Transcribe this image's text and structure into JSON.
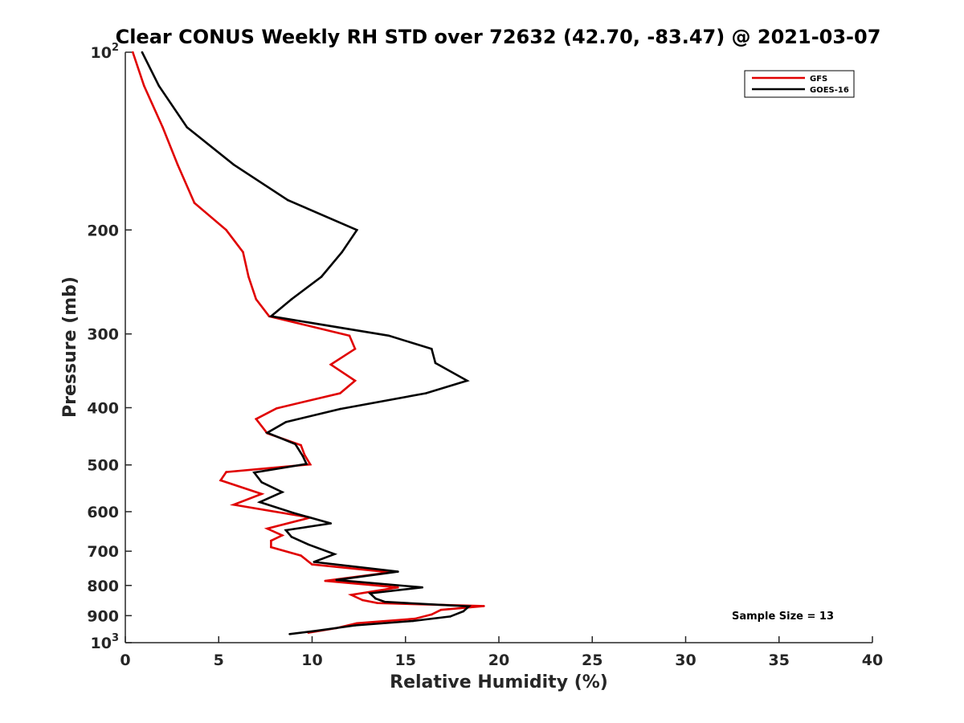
{
  "chart_data": {
    "type": "line",
    "title": "Clear CONUS Weekly RH STD over 72632 (42.70, -83.47) @ 2021-03-07",
    "xlabel": "Relative Humidity (%)",
    "ylabel": "Pressure (mb)",
    "xlim": [
      0,
      40
    ],
    "ylim": [
      100,
      1000
    ],
    "yscale": "log",
    "y_reversed": true,
    "grid": false,
    "legend_position": "top-right",
    "annotation": "Sample Size = 13",
    "x_ticks": [
      0,
      5,
      10,
      15,
      20,
      25,
      30,
      35,
      40
    ],
    "x_tick_labels": [
      "0",
      "5",
      "10",
      "15",
      "20",
      "25",
      "30",
      "35",
      "40"
    ],
    "y_ticks": [
      100,
      200,
      300,
      400,
      500,
      600,
      700,
      800,
      900,
      1000
    ],
    "y_tick_labels": [
      {
        "base": "10",
        "sup": "2"
      },
      {
        "base": "200",
        "sup": ""
      },
      {
        "base": "300",
        "sup": ""
      },
      {
        "base": "400",
        "sup": ""
      },
      {
        "base": "500",
        "sup": ""
      },
      {
        "base": "600",
        "sup": ""
      },
      {
        "base": "700",
        "sup": ""
      },
      {
        "base": "800",
        "sup": ""
      },
      {
        "base": "900",
        "sup": ""
      },
      {
        "base": "10",
        "sup": "3"
      }
    ],
    "series": [
      {
        "name": "GFS",
        "color": "#e00000",
        "points": [
          [
            0.4,
            100
          ],
          [
            1.0,
            114
          ],
          [
            2.0,
            134
          ],
          [
            2.8,
            155
          ],
          [
            3.7,
            180
          ],
          [
            5.4,
            200
          ],
          [
            6.3,
            218
          ],
          [
            6.6,
            240
          ],
          [
            7.0,
            262
          ],
          [
            7.7,
            280
          ],
          [
            12.0,
            302
          ],
          [
            12.3,
            318
          ],
          [
            11.0,
            338
          ],
          [
            12.3,
            360
          ],
          [
            11.5,
            378
          ],
          [
            8.1,
            401
          ],
          [
            7.0,
            418
          ],
          [
            7.6,
            442
          ],
          [
            9.4,
            463
          ],
          [
            9.6,
            481
          ],
          [
            9.9,
            499
          ],
          [
            5.4,
            514
          ],
          [
            5.1,
            531
          ],
          [
            7.3,
            560
          ],
          [
            5.8,
            584
          ],
          [
            9.9,
            614
          ],
          [
            7.6,
            641
          ],
          [
            8.4,
            658
          ],
          [
            7.8,
            672
          ],
          [
            7.8,
            689
          ],
          [
            9.4,
            712
          ],
          [
            10.0,
            737
          ],
          [
            14.2,
            760
          ],
          [
            10.7,
            786
          ],
          [
            14.6,
            806
          ],
          [
            12.1,
            830
          ],
          [
            12.7,
            847
          ],
          [
            13.5,
            857
          ],
          [
            19.2,
            867
          ],
          [
            16.9,
            880
          ],
          [
            16.4,
            896
          ],
          [
            15.5,
            911
          ],
          [
            12.4,
            927
          ],
          [
            11.3,
            945
          ],
          [
            9.8,
            962
          ]
        ]
      },
      {
        "name": "GOES-16",
        "color": "#000000",
        "points": [
          [
            0.9,
            100
          ],
          [
            1.8,
            114
          ],
          [
            3.3,
            134
          ],
          [
            5.8,
            155
          ],
          [
            8.7,
            178
          ],
          [
            12.4,
            200
          ],
          [
            11.6,
            218
          ],
          [
            10.5,
            240
          ],
          [
            8.9,
            262
          ],
          [
            7.8,
            280
          ],
          [
            14.1,
            302
          ],
          [
            16.4,
            318
          ],
          [
            16.6,
            336
          ],
          [
            18.3,
            360
          ],
          [
            16.1,
            378
          ],
          [
            11.5,
            402
          ],
          [
            8.6,
            423
          ],
          [
            7.6,
            441
          ],
          [
            9.1,
            461
          ],
          [
            9.5,
            483
          ],
          [
            9.7,
            498
          ],
          [
            6.9,
            515
          ],
          [
            7.3,
            535
          ],
          [
            8.4,
            556
          ],
          [
            7.2,
            578
          ],
          [
            9.0,
            603
          ],
          [
            11.0,
            628
          ],
          [
            8.6,
            645
          ],
          [
            8.9,
            662
          ],
          [
            9.8,
            682
          ],
          [
            11.2,
            708
          ],
          [
            10.1,
            730
          ],
          [
            14.6,
            758
          ],
          [
            11.3,
            783
          ],
          [
            15.9,
            806
          ],
          [
            13.1,
            825
          ],
          [
            13.4,
            842
          ],
          [
            13.9,
            853
          ],
          [
            18.4,
            868
          ],
          [
            18.1,
            885
          ],
          [
            17.4,
            903
          ],
          [
            15.4,
            919
          ],
          [
            12.3,
            935
          ],
          [
            10.2,
            955
          ],
          [
            8.8,
            967
          ]
        ]
      }
    ]
  }
}
